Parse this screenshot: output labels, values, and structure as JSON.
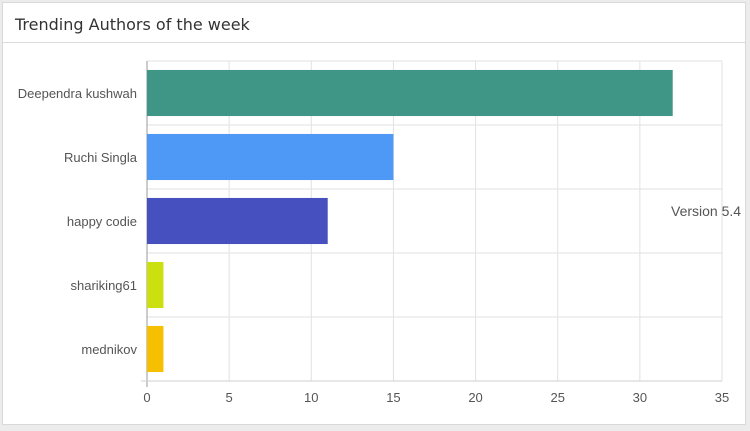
{
  "card": {
    "title": "Trending Authors of the week"
  },
  "version_text": "Version 5.4",
  "chart_data": {
    "type": "bar",
    "orientation": "horizontal",
    "categories": [
      "Deependra kushwah",
      "Ruchi Singla",
      "happy codie",
      "shariking61",
      "mednikov"
    ],
    "values": [
      32,
      15,
      11,
      1,
      1
    ],
    "colors": [
      "#3f9687",
      "#4e98f6",
      "#4650bf",
      "#cce00f",
      "#f6c000"
    ],
    "xlim": [
      0,
      35
    ],
    "xticks": [
      0,
      5,
      10,
      15,
      20,
      25,
      30,
      35
    ],
    "grid": true,
    "title": "",
    "xlabel": "",
    "ylabel": ""
  }
}
